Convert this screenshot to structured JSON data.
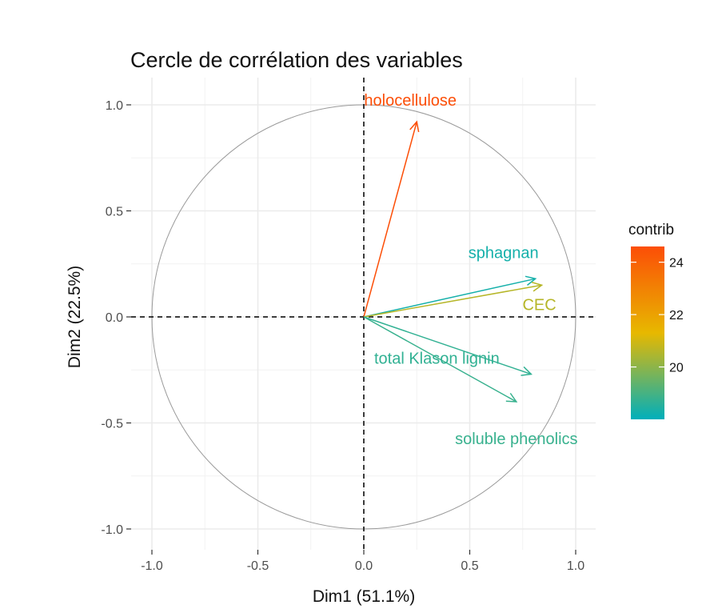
{
  "chart_data": {
    "type": "scatter",
    "subtype": "pca-correlation-circle",
    "title": "Cercle de corrélation des variables",
    "xlabel": "Dim1 (51.1%)",
    "ylabel": "Dim2 (22.5%)",
    "xlim": [
      -1.0,
      1.0
    ],
    "ylim": [
      -1.0,
      1.0
    ],
    "x_ticks": [
      -1.0,
      -0.5,
      0.0,
      0.5,
      1.0
    ],
    "y_ticks": [
      -1.0,
      -0.5,
      0.0,
      0.5,
      1.0
    ],
    "x_tick_labels": [
      "-1.0",
      "-0.5",
      "0.0",
      "0.5",
      "1.0"
    ],
    "y_tick_labels": [
      "-1.0",
      "-0.5",
      "0.0",
      "0.5",
      "1.0"
    ],
    "grid": true,
    "unit_circle": true,
    "variables": [
      {
        "name": "holocellulose",
        "x": 0.25,
        "y": 0.92,
        "contrib": 24.6
      },
      {
        "name": "sphagnan",
        "x": 0.81,
        "y": 0.18,
        "contrib": 18.3
      },
      {
        "name": "CEC",
        "x": 0.84,
        "y": 0.15,
        "contrib": 20.6
      },
      {
        "name": "total Klason lignin",
        "x": 0.79,
        "y": -0.27,
        "contrib": 18.7
      },
      {
        "name": "soluble phenolics",
        "x": 0.72,
        "y": -0.4,
        "contrib": 18.8
      }
    ],
    "legend": {
      "title": "contrib",
      "placement": "right",
      "range": [
        18.0,
        24.6
      ],
      "ticks": [
        20,
        22,
        24
      ],
      "tick_labels": [
        "20",
        "22",
        "24"
      ],
      "colors": [
        "#00AFBB",
        "#E7B800",
        "#FC4E07"
      ]
    }
  }
}
